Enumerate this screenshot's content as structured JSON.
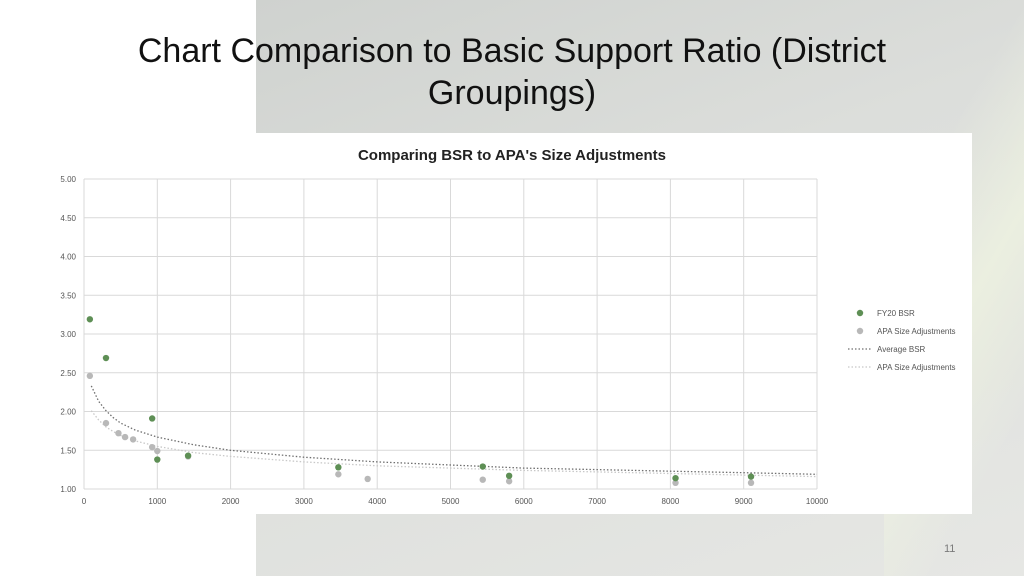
{
  "slide": {
    "title": "Chart Comparison to Basic Support Ratio (District Groupings)",
    "page_number": "11"
  },
  "colors": {
    "bsr": "#5e8f55",
    "apa": "#b8b8b8",
    "bsr_trend": "#6f6f6f",
    "apa_trend": "#c8c8c8",
    "grid": "#d9d9d9"
  },
  "chart_data": {
    "type": "scatter",
    "title": "Comparing BSR to APA's Size Adjustments",
    "xlim": [
      0,
      10000
    ],
    "ylim": [
      1.0,
      5.0
    ],
    "x_ticks": [
      0,
      1000,
      2000,
      3000,
      4000,
      5000,
      6000,
      7000,
      8000,
      9000,
      10000
    ],
    "x_tick_labels": [
      "0",
      "1000",
      "2000",
      "3000",
      "4000",
      "5000",
      "6000",
      "7000",
      "8000",
      "9000",
      "10000"
    ],
    "y_ticks": [
      1.0,
      1.5,
      2.0,
      2.5,
      3.0,
      3.5,
      4.0,
      4.5,
      5.0
    ],
    "y_tick_labels": [
      "1.00",
      "1.50",
      "2.00",
      "2.50",
      "3.00",
      "3.50",
      "4.00",
      "4.50",
      "5.00"
    ],
    "grid": true,
    "legend_position": "right",
    "series": [
      {
        "name": "FY20 BSR",
        "kind": "points",
        "color": "#5e8f55",
        "x": [
          80,
          300,
          930,
          1000,
          1420,
          3470,
          5440,
          5800,
          8070,
          9100
        ],
        "y": [
          3.19,
          2.69,
          1.91,
          1.38,
          1.43,
          1.28,
          1.29,
          1.17,
          1.14,
          1.16
        ]
      },
      {
        "name": "APA Size Adjustments",
        "kind": "points",
        "color": "#b8b8b8",
        "x": [
          80,
          300,
          470,
          560,
          670,
          930,
          1000,
          1420,
          3470,
          3870,
          5440,
          5800,
          8070,
          9100
        ],
        "y": [
          2.46,
          1.85,
          1.72,
          1.67,
          1.64,
          1.54,
          1.49,
          1.42,
          1.19,
          1.13,
          1.12,
          1.1,
          1.08,
          1.08
        ]
      },
      {
        "name": "Average BSR",
        "kind": "trendline",
        "color": "#6f6f6f",
        "x": [
          100,
          200,
          300,
          400,
          500,
          700,
          1000,
          1500,
          2000,
          3000,
          4000,
          5000,
          6000,
          7000,
          8000,
          9000,
          10000
        ],
        "y": [
          2.33,
          2.13,
          2.01,
          1.92,
          1.85,
          1.76,
          1.67,
          1.57,
          1.5,
          1.41,
          1.35,
          1.31,
          1.27,
          1.25,
          1.23,
          1.21,
          1.19
        ]
      },
      {
        "name": "APA Size Adjustments",
        "kind": "trendline",
        "color": "#c8c8c8",
        "x": [
          100,
          200,
          300,
          400,
          500,
          700,
          1000,
          1500,
          2000,
          3000,
          4000,
          5000,
          6000,
          7000,
          8000,
          9000,
          10000
        ],
        "y": [
          2.01,
          1.89,
          1.8,
          1.74,
          1.69,
          1.62,
          1.55,
          1.47,
          1.42,
          1.35,
          1.3,
          1.27,
          1.24,
          1.22,
          1.2,
          1.18,
          1.16
        ]
      }
    ]
  }
}
